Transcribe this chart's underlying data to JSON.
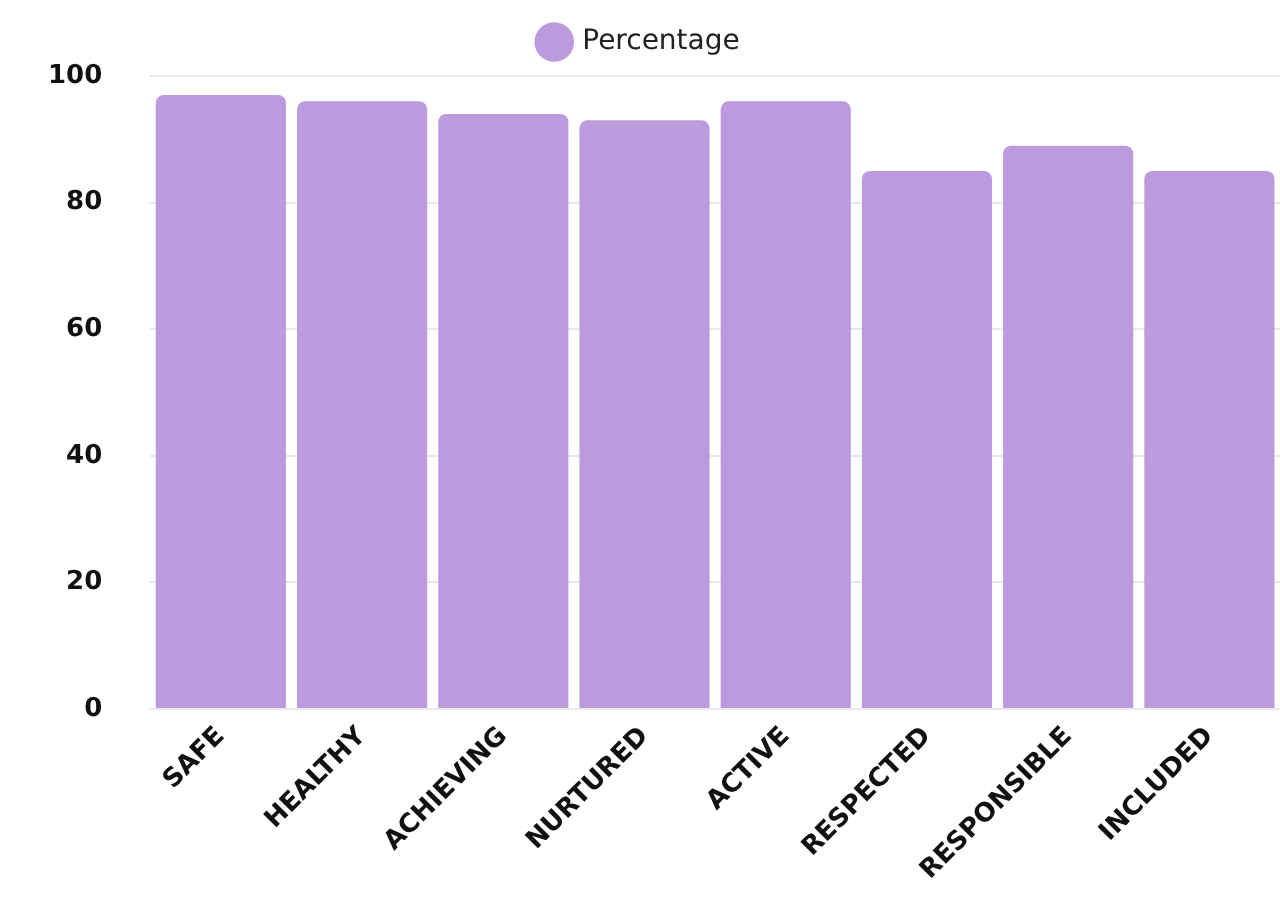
{
  "chart_data": {
    "type": "bar",
    "categories": [
      "SAFE",
      "HEALTHY",
      "ACHIEVING",
      "NURTURED",
      "ACTIVE",
      "RESPECTED",
      "RESPONSIBLE",
      "INCLUDED"
    ],
    "series": [
      {
        "name": "Percentage",
        "color": "#bc9ade",
        "values": [
          97,
          96,
          94,
          93,
          96,
          85,
          89,
          85
        ]
      }
    ],
    "ylim": [
      0,
      100
    ],
    "yticks": [
      0,
      20,
      40,
      60,
      80,
      100
    ],
    "grid": "y",
    "legend": "top"
  }
}
